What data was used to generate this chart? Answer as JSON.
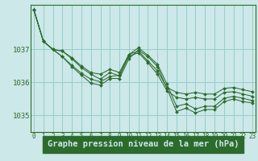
{
  "background_color": "#cce8e8",
  "plot_bg_color": "#cce8e8",
  "grid_color": "#99cccc",
  "line_color": "#2d6b2d",
  "marker_color": "#2d6b2d",
  "xlabel": "Graphe pression niveau de la mer (hPa)",
  "xlabel_fontsize": 7.5,
  "xlabel_bg": "#2d6b2d",
  "xlabel_fg": "#cce8e8",
  "ylabel_fontsize": 6.5,
  "tick_fontsize": 5.5,
  "xlim": [
    -0.3,
    23.3
  ],
  "ylim": [
    1034.5,
    1038.35
  ],
  "yticks": [
    1035,
    1036,
    1037
  ],
  "xticks": [
    0,
    1,
    2,
    3,
    4,
    5,
    6,
    7,
    8,
    9,
    10,
    11,
    12,
    13,
    14,
    15,
    16,
    17,
    18,
    19,
    20,
    21,
    22,
    23
  ],
  "series": [
    [
      1038.2,
      1037.25,
      1037.0,
      1036.95,
      1036.75,
      1036.5,
      1036.3,
      1036.25,
      1036.4,
      1036.3,
      1036.85,
      1036.95,
      1036.65,
      1036.35,
      1035.85,
      1035.7,
      1035.65,
      1035.7,
      1035.65,
      1035.65,
      1035.82,
      1035.85,
      1035.78,
      1035.72
    ],
    [
      1038.2,
      1037.25,
      1037.0,
      1036.95,
      1036.72,
      1036.45,
      1036.25,
      1036.1,
      1036.3,
      1036.2,
      1036.8,
      1036.9,
      1036.6,
      1036.25,
      1035.75,
      1035.55,
      1035.5,
      1035.55,
      1035.5,
      1035.5,
      1035.7,
      1035.72,
      1035.65,
      1035.58
    ],
    [
      1038.2,
      1037.25,
      1037.0,
      1036.78,
      1036.52,
      1036.28,
      1036.1,
      1036.02,
      1036.18,
      1036.22,
      1036.85,
      1037.05,
      1036.82,
      1036.55,
      1035.95,
      1035.28,
      1035.35,
      1035.2,
      1035.28,
      1035.28,
      1035.52,
      1035.58,
      1035.52,
      1035.45
    ],
    [
      1038.2,
      1037.25,
      1037.0,
      1036.78,
      1036.48,
      1036.22,
      1035.98,
      1035.92,
      1036.12,
      1036.12,
      1036.72,
      1036.98,
      1036.78,
      1036.48,
      1035.82,
      1035.12,
      1035.22,
      1035.08,
      1035.18,
      1035.18,
      1035.42,
      1035.5,
      1035.42,
      1035.38
    ]
  ]
}
